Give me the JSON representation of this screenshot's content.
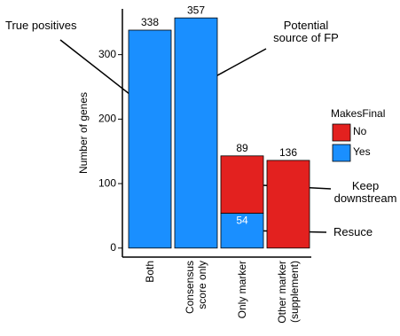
{
  "chart_data": {
    "type": "stacked_bar",
    "y_label": "Number of genes",
    "categories": [
      "Both",
      "Consensus score only",
      "Only marker",
      "Other marker (supplement)"
    ],
    "series": [
      {
        "name": "No",
        "color": "#e3211f",
        "values": [
          null,
          null,
          89,
          136
        ]
      },
      {
        "name": "Yes",
        "color": "#1a8fff",
        "values": [
          338,
          357,
          54,
          null
        ]
      }
    ],
    "legend_title": "MakesFinal",
    "ylim": [
      -14,
      371
    ],
    "yticks": [
      0,
      100,
      200,
      300
    ],
    "annotations": [
      {
        "text": "True positives"
      },
      {
        "text": "Potential source of FP"
      },
      {
        "text": "Keep downstream"
      },
      {
        "text": "Resuce"
      }
    ]
  }
}
